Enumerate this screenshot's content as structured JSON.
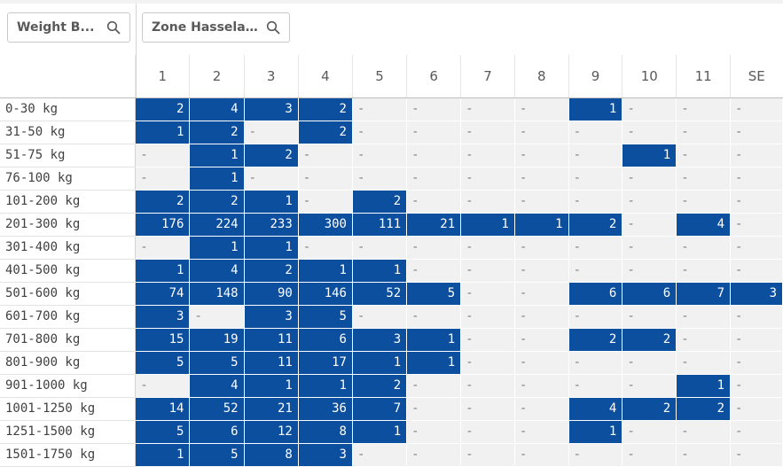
{
  "filters": [
    {
      "label": "Weight B...",
      "icon": "search-icon"
    },
    {
      "label": "Zone Hasselager",
      "icon": "search-icon"
    }
  ],
  "table": {
    "columns": [
      "1",
      "2",
      "3",
      "4",
      "5",
      "6",
      "7",
      "8",
      "9",
      "10",
      "11",
      "SE"
    ],
    "rows": [
      {
        "label": "0-30 kg",
        "cells": [
          "2",
          "4",
          "3",
          "2",
          "-",
          "-",
          "-",
          "-",
          "1",
          "-",
          "-",
          "-"
        ]
      },
      {
        "label": "31-50 kg",
        "cells": [
          "1",
          "2",
          "-",
          "2",
          "-",
          "-",
          "-",
          "-",
          "-",
          "-",
          "-",
          "-"
        ]
      },
      {
        "label": "51-75 kg",
        "cells": [
          "-",
          "1",
          "2",
          "-",
          "-",
          "-",
          "-",
          "-",
          "-",
          "1",
          "-",
          "-"
        ]
      },
      {
        "label": "76-100 kg",
        "cells": [
          "-",
          "1",
          "-",
          "-",
          "-",
          "-",
          "-",
          "-",
          "-",
          "-",
          "-",
          "-"
        ]
      },
      {
        "label": "101-200 kg",
        "cells": [
          "2",
          "2",
          "1",
          "-",
          "2",
          "-",
          "-",
          "-",
          "-",
          "-",
          "-",
          "-"
        ]
      },
      {
        "label": "201-300 kg",
        "cells": [
          "176",
          "224",
          "233",
          "300",
          "111",
          "21",
          "1",
          "1",
          "2",
          "-",
          "4",
          "-"
        ]
      },
      {
        "label": "301-400 kg",
        "cells": [
          "-",
          "1",
          "1",
          "-",
          "-",
          "-",
          "-",
          "-",
          "-",
          "-",
          "-",
          "-"
        ]
      },
      {
        "label": "401-500 kg",
        "cells": [
          "1",
          "4",
          "2",
          "1",
          "1",
          "-",
          "-",
          "-",
          "-",
          "-",
          "-",
          "-"
        ]
      },
      {
        "label": "501-600 kg",
        "cells": [
          "74",
          "148",
          "90",
          "146",
          "52",
          "5",
          "-",
          "-",
          "6",
          "6",
          "7",
          "3"
        ]
      },
      {
        "label": "601-700 kg",
        "cells": [
          "3",
          "-",
          "3",
          "5",
          "-",
          "-",
          "-",
          "-",
          "-",
          "-",
          "-",
          "-"
        ]
      },
      {
        "label": "701-800 kg",
        "cells": [
          "15",
          "19",
          "11",
          "6",
          "3",
          "1",
          "-",
          "-",
          "2",
          "2",
          "-",
          "-"
        ]
      },
      {
        "label": "801-900 kg",
        "cells": [
          "5",
          "5",
          "11",
          "17",
          "1",
          "1",
          "-",
          "-",
          "-",
          "-",
          "-",
          "-"
        ]
      },
      {
        "label": "901-1000 kg",
        "cells": [
          "-",
          "4",
          "1",
          "1",
          "2",
          "-",
          "-",
          "-",
          "-",
          "-",
          "1",
          "-"
        ]
      },
      {
        "label": "1001-1250 kg",
        "cells": [
          "14",
          "52",
          "21",
          "36",
          "7",
          "-",
          "-",
          "-",
          "4",
          "2",
          "2",
          "-"
        ]
      },
      {
        "label": "1251-1500 kg",
        "cells": [
          "5",
          "6",
          "12",
          "8",
          "1",
          "-",
          "-",
          "-",
          "1",
          "-",
          "-",
          "-"
        ]
      },
      {
        "label": "1501-1750 kg",
        "cells": [
          "1",
          "5",
          "8",
          "3",
          "-",
          "-",
          "-",
          "-",
          "-",
          "-",
          "-",
          "-"
        ]
      }
    ]
  },
  "colors": {
    "cell_fill": "#0d4f9f",
    "empty_fill": "#f1f1f1",
    "header_text": "#595959"
  }
}
